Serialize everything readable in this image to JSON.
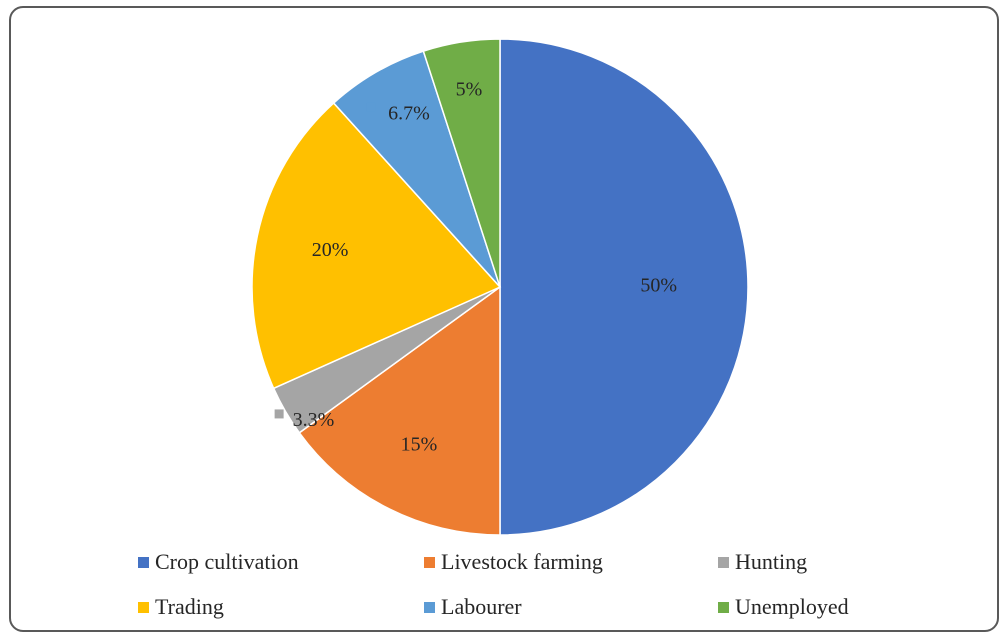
{
  "chart_data": {
    "type": "pie",
    "title": "",
    "start_angle_deg": 0,
    "direction": "clockwise",
    "slices": [
      {
        "label": "Crop cultivation",
        "value": 50,
        "display": "50%",
        "color": "#4472C4"
      },
      {
        "label": "Livestock farming",
        "value": 15,
        "display": "15%",
        "color": "#ED7D31"
      },
      {
        "label": "Hunting",
        "value": 3.3,
        "display": "3.3%",
        "color": "#A5A5A5"
      },
      {
        "label": "Trading",
        "value": 20,
        "display": "20%",
        "color": "#FFC000"
      },
      {
        "label": "Labourer",
        "value": 6.7,
        "display": "6.7%",
        "color": "#5B9BD5"
      },
      {
        "label": "Unemployed",
        "value": 5,
        "display": "5%",
        "color": "#70AD47"
      }
    ],
    "legend_position": "bottom"
  }
}
